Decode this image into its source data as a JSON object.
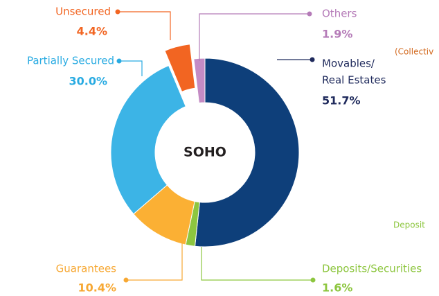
{
  "chart_data": {
    "type": "pie",
    "center_label": "SOHO",
    "categories": [
      [
        "Movables/",
        "Real Estates"
      ],
      "Deposits/Securities",
      "Guarantees",
      "Partially Secured",
      "Unsecured",
      "Others"
    ],
    "values": [
      51.7,
      1.6,
      10.4,
      30.0,
      4.4,
      1.9
    ],
    "value_labels": [
      "51.7%",
      "1.6%",
      "10.4%",
      "30.0%",
      "4.4%",
      "1.9%"
    ],
    "colors": [
      "#0e3f7a",
      "#8dc63f",
      "#fbb034",
      "#3cb4e6",
      "#f26522",
      "#c48bc4"
    ],
    "label_colors": [
      "#1f2a5c",
      "#8dc63f",
      "#f7a833",
      "#29abe2",
      "#f26522",
      "#b57bb8"
    ],
    "exploded": [
      false,
      false,
      false,
      false,
      true,
      false
    ],
    "annotations": [
      "(Collectiv",
      "Deposit"
    ]
  }
}
